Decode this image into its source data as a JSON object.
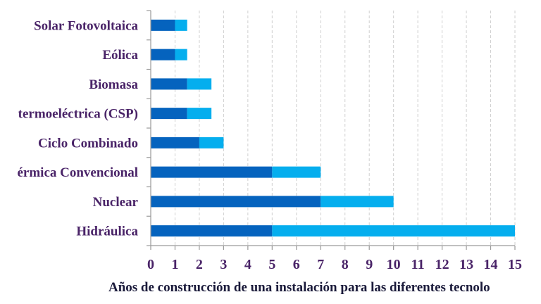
{
  "chart_data": {
    "type": "bar",
    "orientation": "horizontal",
    "stacked": true,
    "title": "",
    "xlabel": "Años de construcción de una instalación para las diferentes tecnolo",
    "ylabel": "",
    "xlim": [
      0,
      15
    ],
    "xticks": [
      "0",
      "1",
      "2",
      "3",
      "4",
      "5",
      "6",
      "7",
      "8",
      "9",
      "10",
      "11",
      "12",
      "13",
      "14",
      "15"
    ],
    "grid": "vertical-dashed",
    "legend": "none",
    "categories": [
      "Solar Fotovoltaica",
      "Eólica",
      "Biomasa",
      "termoeléctrica (CSP)",
      "Ciclo Combinado",
      "érmica Convencional",
      "Nuclear",
      "Hidráulica"
    ],
    "series": [
      {
        "name": "segment-1",
        "color": "#0563BE",
        "values": [
          1,
          1,
          1.5,
          1.5,
          2,
          5,
          7,
          5
        ]
      },
      {
        "name": "segment-2",
        "color": "#05AEEE",
        "values": [
          0.5,
          0.5,
          1,
          1,
          1,
          2,
          3,
          10
        ]
      }
    ],
    "totals": [
      1.5,
      1.5,
      2.5,
      2.5,
      3,
      7,
      10,
      15
    ]
  },
  "colors": {
    "label": "#4A2468",
    "axis_title": "#1A1A3A",
    "axis_line": "#9A9A9A",
    "grid": "#CFCFCF"
  }
}
